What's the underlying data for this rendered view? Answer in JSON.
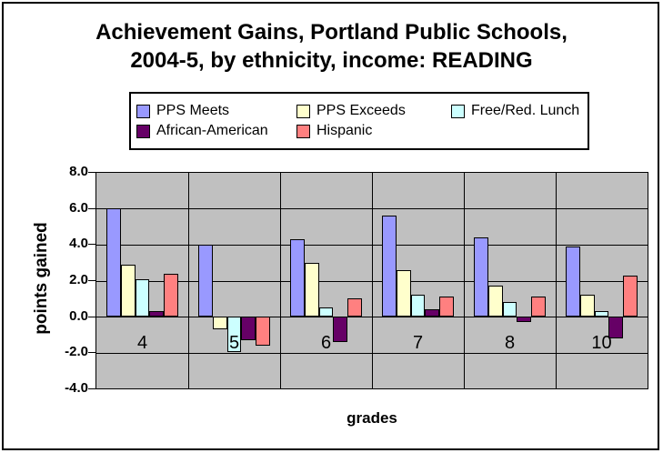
{
  "title": {
    "line1": "Achievement Gains, Portland Public Schools,",
    "line2": "2004-5, by ethnicity, income: READING"
  },
  "chart_data": {
    "type": "bar",
    "title": "Achievement Gains, Portland Public Schools, 2004-5, by ethnicity, income: READING",
    "xlabel": "grades",
    "ylabel": "points gained",
    "categories": [
      "4",
      "5",
      "6",
      "7",
      "8",
      "10"
    ],
    "series": [
      {
        "name": "PPS Meets",
        "color": "#9999FF",
        "values": [
          6.0,
          4.0,
          4.3,
          5.6,
          4.4,
          3.9
        ]
      },
      {
        "name": "PPS Exceeds",
        "color": "#FFFFCC",
        "values": [
          2.9,
          -0.7,
          3.0,
          2.6,
          1.7,
          1.2
        ]
      },
      {
        "name": "Free/Red. Lunch",
        "color": "#CCFFFF",
        "values": [
          2.1,
          -2.0,
          0.5,
          1.2,
          0.8,
          0.3
        ]
      },
      {
        "name": "African-American",
        "color": "#660066",
        "values": [
          0.3,
          -1.3,
          -1.4,
          0.4,
          -0.3,
          -1.2
        ]
      },
      {
        "name": "Hispanic",
        "color": "#FF8080",
        "values": [
          2.4,
          -1.6,
          1.0,
          1.1,
          1.1,
          2.3
        ]
      }
    ],
    "ylim": [
      -4.0,
      8.0
    ],
    "ytick_step": 2.0,
    "yticks": [
      "8.0",
      "6.0",
      "4.0",
      "2.0",
      "0.0",
      "-2.0",
      "-4.0"
    ],
    "grid": true,
    "legend_position": "top",
    "plot_bg_color": "#C0C0C0",
    "gridline_color": "#000000"
  }
}
